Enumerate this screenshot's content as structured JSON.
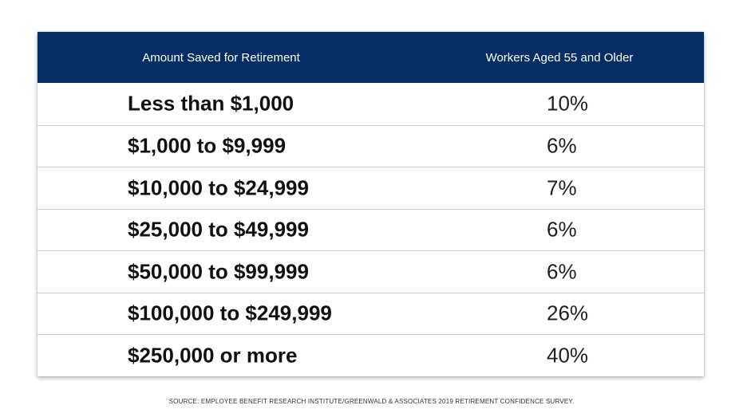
{
  "chart_data": {
    "type": "table",
    "columns": [
      "Amount Saved for Retirement",
      "Workers Aged 55 and Older"
    ],
    "rows": [
      {
        "amount": "Less than $1,000",
        "percent": "10%"
      },
      {
        "amount": "$1,000 to $9,999",
        "percent": "6%"
      },
      {
        "amount": "$10,000 to $24,999",
        "percent": "7%"
      },
      {
        "amount": "$25,000 to $49,999",
        "percent": "6%"
      },
      {
        "amount": "$50,000 to $99,999",
        "percent": "6%"
      },
      {
        "amount": "$100,000 to $249,999",
        "percent": "26%"
      },
      {
        "amount": "$250,000 or more",
        "percent": "40%"
      }
    ],
    "source": "SOURCE: EMPLOYEE BENEFIT RESEARCH INSTITUTE/GREENWALD & ASSOCIATES 2019 RETIREMENT CONFIDENCE SURVEY."
  },
  "colors": {
    "header_background": "#042f66",
    "header_text": "#ffffff",
    "row_divider": "#c7cfd9"
  }
}
